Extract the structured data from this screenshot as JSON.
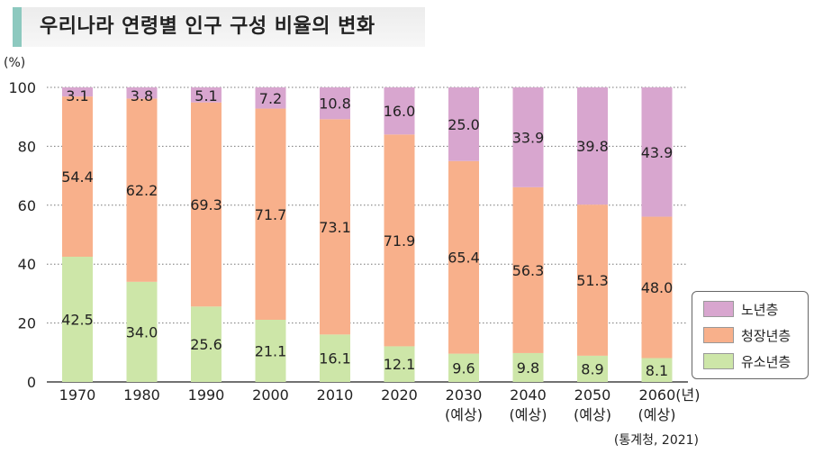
{
  "title": "우리나라 연령별 인구 구성 비율의 변화",
  "ylabel": "(%)",
  "source": "(통계청, 2021)",
  "legend": [
    {
      "label": "노년층",
      "color": "#d8a6cf"
    },
    {
      "label": "청장년층",
      "color": "#f8b08b"
    },
    {
      "label": "유소년층",
      "color": "#cde6a8"
    }
  ],
  "chart_data": {
    "type": "bar",
    "stacked": true,
    "ylim": [
      0,
      100
    ],
    "yticks": [
      "0",
      "20",
      "40",
      "60",
      "80",
      "100"
    ],
    "grid": "dotted horizontal",
    "legend_position": "bottom-right",
    "categories": [
      "1970",
      "1980",
      "1990",
      "2000",
      "2010",
      "2020",
      "2030",
      "2040",
      "2050",
      "2060"
    ],
    "category_sublabels": [
      "",
      "",
      "",
      "",
      "",
      "",
      "(예상)",
      "(예상)",
      "(예상)",
      "(예상)"
    ],
    "last_category_suffix": "(년)",
    "series": [
      {
        "name": "유소년층",
        "color": "#cde6a8",
        "values": [
          42.5,
          34.0,
          25.6,
          21.1,
          16.1,
          12.1,
          9.6,
          9.8,
          8.9,
          8.1
        ],
        "labels": [
          "42.5",
          "34.0",
          "25.6",
          "21.1",
          "16.1",
          "12.1",
          "9.6",
          "9.8",
          "8.9",
          "8.1"
        ]
      },
      {
        "name": "청장년층",
        "color": "#f8b08b",
        "values": [
          54.4,
          62.2,
          69.3,
          71.7,
          73.1,
          71.9,
          65.4,
          56.3,
          51.3,
          48.0
        ],
        "labels": [
          "54.4",
          "62.2",
          "69.3",
          "71.7",
          "73.1",
          "71.9",
          "65.4",
          "56.3",
          "51.3",
          "48.0"
        ]
      },
      {
        "name": "노년층",
        "color": "#d8a6cf",
        "values": [
          3.1,
          3.8,
          5.1,
          7.2,
          10.8,
          16.0,
          25.0,
          33.9,
          39.8,
          43.9
        ],
        "labels": [
          "3.1",
          "3.8",
          "5.1",
          "7.2",
          "10.8",
          "16.0",
          "25.0",
          "33.9",
          "39.8",
          "43.9"
        ]
      }
    ]
  }
}
